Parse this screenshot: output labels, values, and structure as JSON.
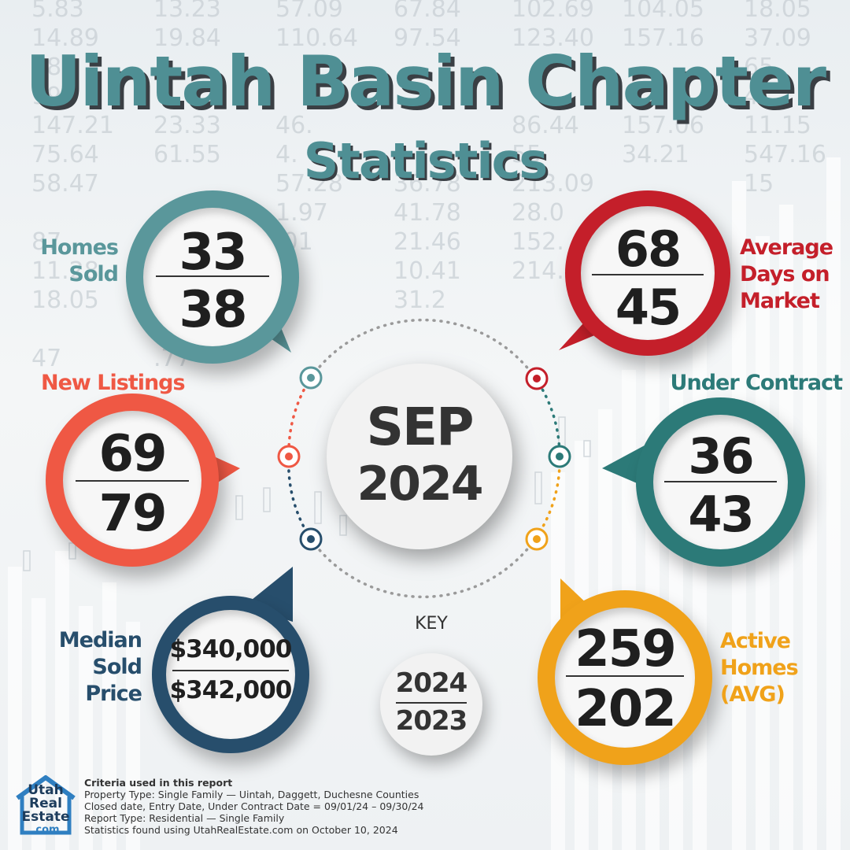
{
  "title": "Uintah Basin Chapter",
  "subtitle": "Statistics",
  "period": {
    "month": "SEP",
    "year": "2024"
  },
  "colors": {
    "teal": "#5a979b",
    "red": "#c41f2a",
    "coral": "#ef5844",
    "dark_teal": "#2c7a78",
    "navy": "#274e6c",
    "orange": "#f0a21a"
  },
  "stats": {
    "homes_sold": {
      "label_1": "Homes",
      "label_2": "Sold",
      "current": "33",
      "previous": "38"
    },
    "days_on_market": {
      "label_1": "Average",
      "label_2": "Days on",
      "label_3": "Market",
      "current": "68",
      "previous": "45"
    },
    "new_listings": {
      "label": "New Listings",
      "current": "69",
      "previous": "79"
    },
    "under_contract": {
      "label": "Under Contract",
      "current": "36",
      "previous": "43"
    },
    "median_sold_price": {
      "label_1": "Median",
      "label_2": "Sold",
      "label_3": "Price",
      "current": "$340,000",
      "previous": "$342,000"
    },
    "active_homes": {
      "label_1": "Active",
      "label_2": "Homes",
      "label_3": "(AVG)",
      "current": "259",
      "previous": "202"
    }
  },
  "key": {
    "label": "KEY",
    "current_year": "2024",
    "previous_year": "2023"
  },
  "logo": {
    "line1": "Utah",
    "line2": "Real",
    "line3": "Estate",
    "line4": ".com"
  },
  "criteria": {
    "heading": "Criteria used in this report",
    "line1": "Property Type: Single Family — Uintah, Daggett, Duchesne Counties",
    "line2": "Closed date, Entry Date, Under Contract Date = 09/01/24 – 09/30/24",
    "line3": "Report Type: Residential — Single Family",
    "line4": "Statistics found using UtahRealEstate.com on October 10, 2024"
  },
  "background_numbers": [
    [
      "5.83",
      "13.23",
      "57.09",
      "67.84",
      "102.69",
      "104.05",
      "18.05"
    ],
    [
      "14.89",
      "19.84",
      "110.64",
      "97.54",
      "123.40",
      "157.16",
      "37.09"
    ],
    [
      "78.",
      "",
      "",
      "",
      "",
      "",
      "65"
    ],
    [
      "99.",
      "",
      "",
      "",
      "",
      "",
      "4"
    ],
    [
      "147.21",
      "23.33",
      "46.",
      "",
      "86.44",
      "157.06",
      "11.15"
    ],
    [
      "75.64",
      "61.55",
      "4.",
      "",
      "55",
      "34.21",
      "547.16"
    ],
    [
      "58.47",
      "",
      "57.28",
      "36.78",
      "213.09",
      "",
      "15"
    ],
    [
      "",
      "",
      "1.97",
      "41.78",
      "28.0",
      "",
      ""
    ],
    [
      "87",
      "",
      ".01",
      "21.46",
      "152.",
      "",
      ""
    ],
    [
      "11.28",
      "",
      "",
      "10.41",
      "214.6",
      "",
      ""
    ],
    [
      "18.05",
      "238",
      "",
      "31.2",
      "",
      "",
      ""
    ],
    [
      "",
      ".56",
      "",
      "",
      "",
      "",
      ""
    ],
    [
      "47",
      ".77",
      "",
      "",
      "",
      "",
      ""
    ]
  ]
}
